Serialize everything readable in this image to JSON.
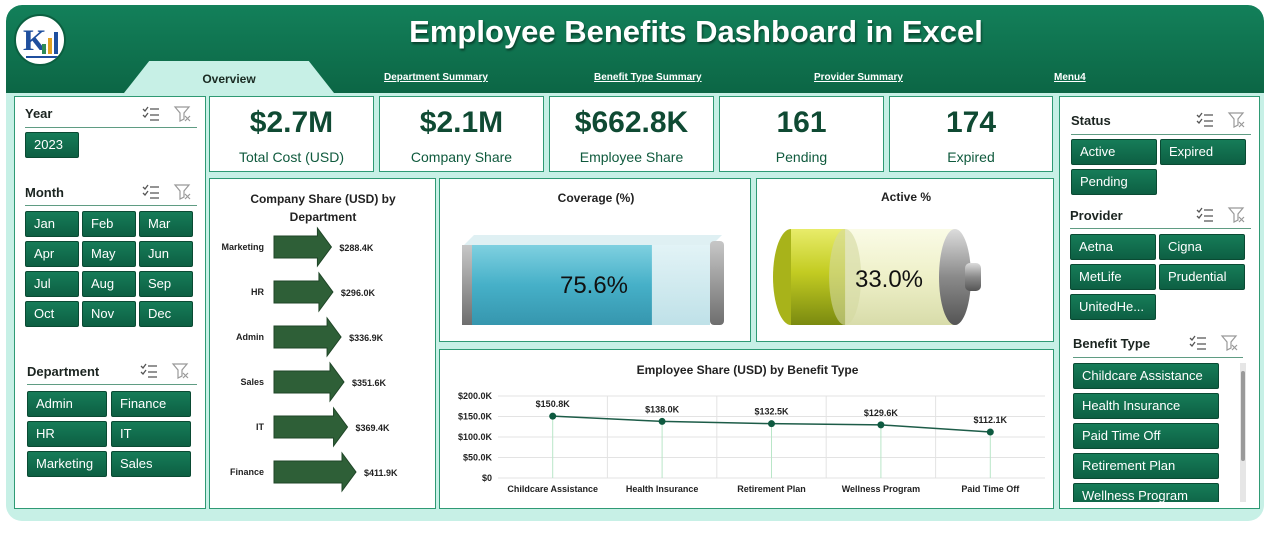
{
  "header": {
    "title": "Employee Benefits Dashboard in Excel",
    "tabs": [
      {
        "label": "Overview",
        "active": true
      },
      {
        "label": "Department Summary",
        "active": false
      },
      {
        "label": "Benefit Type Summary",
        "active": false
      },
      {
        "label": "Provider Summary",
        "active": false
      },
      {
        "label": "Menu4",
        "active": false
      }
    ]
  },
  "colors": {
    "brand": "#0c6645",
    "panel_bg": "#c7f0e6",
    "button": "#116b4b",
    "accent_gold": "#c6b82a"
  },
  "slicers": {
    "year": {
      "title": "Year",
      "items": [
        "2023"
      ]
    },
    "month": {
      "title": "Month",
      "items": [
        "Jan",
        "Feb",
        "Mar",
        "Apr",
        "May",
        "Jun",
        "Jul",
        "Aug",
        "Sep",
        "Oct",
        "Nov",
        "Dec"
      ]
    },
    "department": {
      "title": "Department",
      "items": [
        "Admin",
        "Finance",
        "HR",
        "IT",
        "Marketing",
        "Sales"
      ]
    },
    "status": {
      "title": "Status",
      "items": [
        "Active",
        "Expired",
        "Pending"
      ]
    },
    "provider": {
      "title": "Provider",
      "items": [
        "Aetna",
        "Cigna",
        "MetLife",
        "Prudential",
        "UnitedHe..."
      ]
    },
    "benefit_type": {
      "title": "Benefit Type",
      "items": [
        "Childcare Assistance",
        "Health Insurance",
        "Paid Time Off",
        "Retirement Plan",
        "Wellness Program"
      ]
    }
  },
  "kpis": [
    {
      "value": "$2.7M",
      "label": "Total Cost (USD)"
    },
    {
      "value": "$2.1M",
      "label": "Company Share"
    },
    {
      "value": "$662.8K",
      "label": "Employee Share"
    },
    {
      "value": "161",
      "label": "Pending"
    },
    {
      "value": "174",
      "label": "Expired"
    }
  ],
  "coverage": {
    "title": "Coverage (%)",
    "value": 75.6,
    "label": "75.6%"
  },
  "active": {
    "title": "Active %",
    "value": 33.0,
    "label": "33.0%"
  },
  "chart_data": [
    {
      "type": "bar",
      "title": "Company Share (USD) by Department",
      "orientation": "horizontal",
      "categories": [
        "Marketing",
        "HR",
        "Admin",
        "Sales",
        "IT",
        "Finance"
      ],
      "values": [
        288400,
        296000,
        336900,
        351600,
        369400,
        411900
      ],
      "data_labels": [
        "$288.4K",
        "$296.0K",
        "$336.9K",
        "$351.6K",
        "$369.4K",
        "$411.9K"
      ],
      "xlabel": "",
      "ylabel": ""
    },
    {
      "type": "line",
      "title": "Employee Share (USD) by Benefit Type",
      "categories": [
        "Childcare Assistance",
        "Health Insurance",
        "Retirement Plan",
        "Wellness Program",
        "Paid Time Off"
      ],
      "values": [
        150800,
        138000,
        132500,
        129600,
        112100
      ],
      "data_labels": [
        "$150.8K",
        "$138.0K",
        "$132.5K",
        "$129.6K",
        "$112.1K"
      ],
      "y_ticks": [
        "$0",
        "$50.0K",
        "$100.0K",
        "$150.0K",
        "$200.0K"
      ],
      "ylim": [
        0,
        200000
      ],
      "grid": true,
      "xlabel": "",
      "ylabel": ""
    }
  ]
}
